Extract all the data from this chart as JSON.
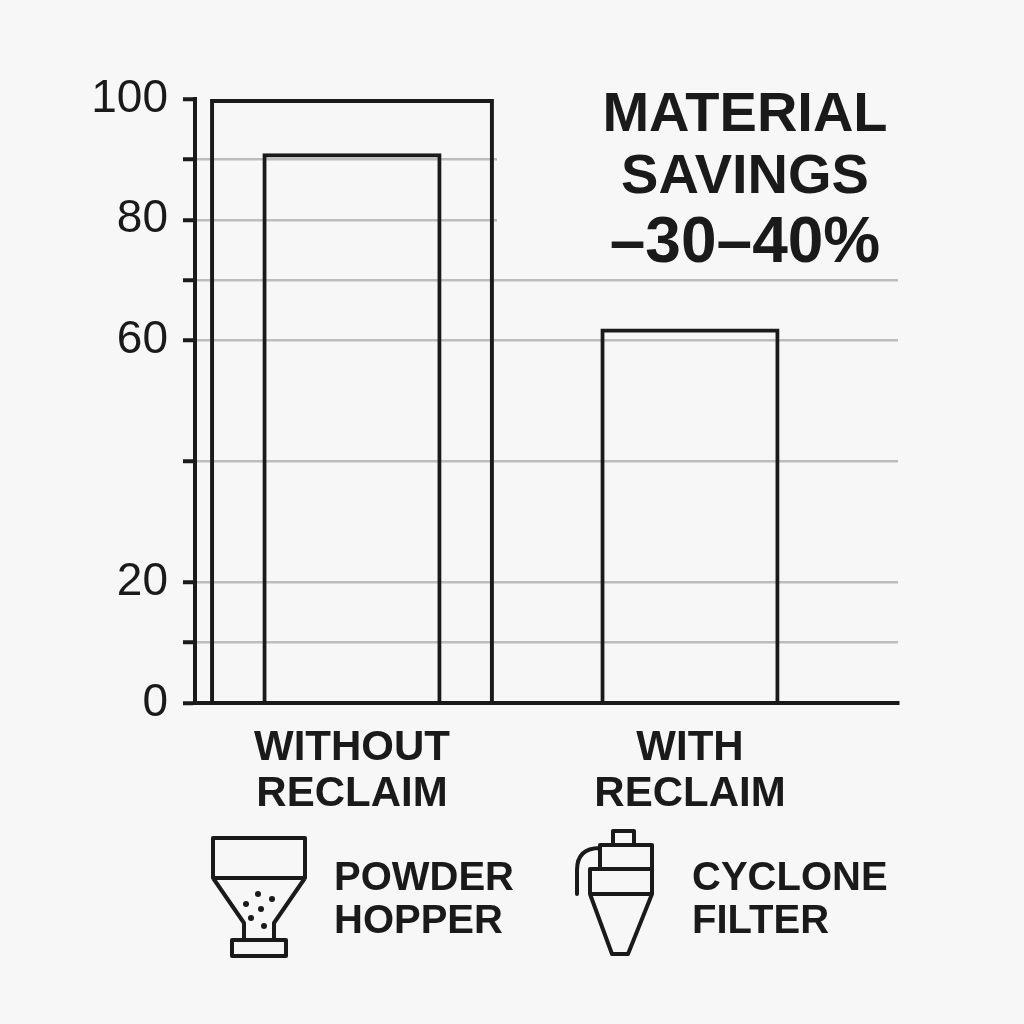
{
  "chart_data": {
    "type": "bar",
    "title": "MATERIAL SAVINGS",
    "subtitle": "–30–40%",
    "categories": [
      "WITHOUT RECLAIM",
      "WITH RECLAIM"
    ],
    "series": [
      {
        "color": "#1a1a1a",
        "values": [
          100,
          null
        ]
      },
      {
        "color": "#1a1a1a",
        "values": [
          91,
          62
        ]
      }
    ],
    "ylim": [
      0,
      100
    ],
    "yticks": [
      0,
      {
        "value": 10,
        "label": null
      },
      20,
      {
        "value": 40,
        "label": null
      },
      60,
      {
        "value": 70,
        "label": null
      },
      80,
      {
        "value": 90,
        "label": null
      },
      100
    ],
    "grid": "y",
    "legend": false,
    "annotations": [
      "POWDER HOPPER",
      "CYCLONE FILTER"
    ]
  }
}
